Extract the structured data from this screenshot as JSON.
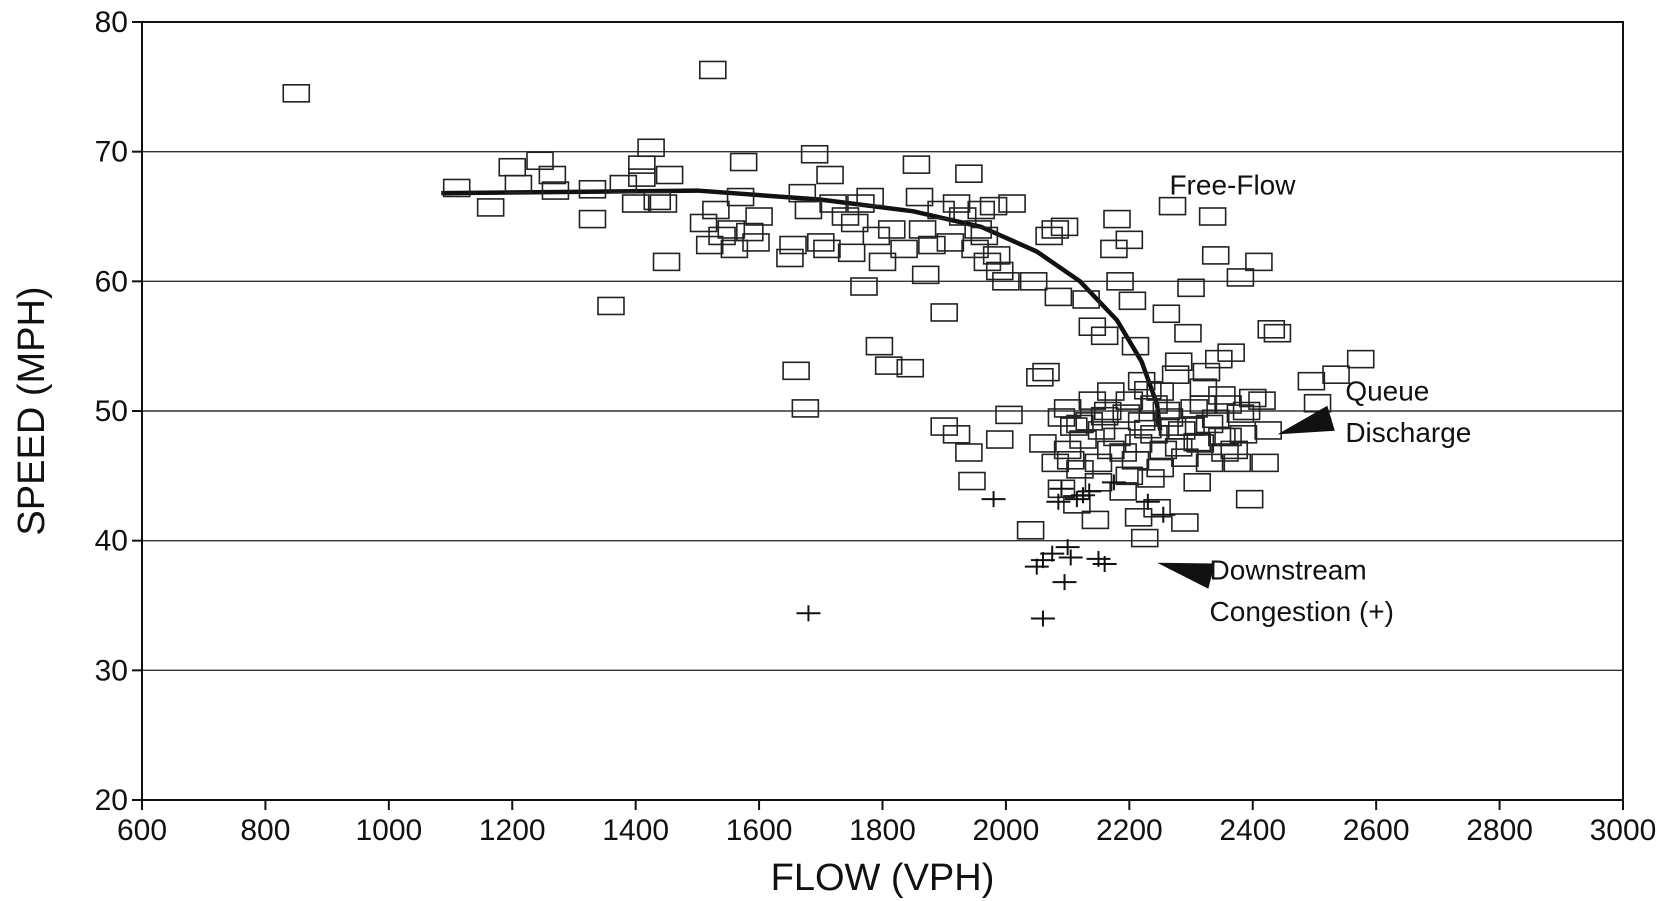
{
  "chart_data": {
    "type": "scatter",
    "xlabel": "FLOW (VPH)",
    "ylabel": "SPEED (MPH)",
    "xlim": [
      600,
      3000
    ],
    "ylim": [
      20,
      80
    ],
    "x_ticks": [
      600,
      800,
      1000,
      1200,
      1400,
      1600,
      1800,
      2000,
      2200,
      2400,
      2600,
      2800,
      3000
    ],
    "y_ticks": [
      20,
      30,
      40,
      50,
      60,
      70,
      80
    ],
    "grid": "horizontal",
    "series": [
      {
        "marker": "square",
        "points": [
          [
            850,
            74.5
          ],
          [
            1525,
            76.3
          ],
          [
            1110,
            67.2
          ],
          [
            1165,
            65.7
          ],
          [
            1200,
            68.8
          ],
          [
            1210,
            67.5
          ],
          [
            1245,
            69.3
          ],
          [
            1265,
            68.2
          ],
          [
            1270,
            67.0
          ],
          [
            1330,
            67.1
          ],
          [
            1330,
            64.8
          ],
          [
            1360,
            58.1
          ],
          [
            1380,
            67.5
          ],
          [
            1400,
            66.0
          ],
          [
            1410,
            68.0
          ],
          [
            1425,
            70.3
          ],
          [
            1435,
            66.2
          ],
          [
            1445,
            66.0
          ],
          [
            1455,
            68.2
          ],
          [
            1450,
            61.5
          ],
          [
            1410,
            69.0
          ],
          [
            1510,
            64.5
          ],
          [
            1520,
            62.8
          ],
          [
            1530,
            65.5
          ],
          [
            1540,
            63.5
          ],
          [
            1555,
            64.0
          ],
          [
            1560,
            62.5
          ],
          [
            1570,
            66.5
          ],
          [
            1575,
            69.2
          ],
          [
            1585,
            63.8
          ],
          [
            1595,
            63.0
          ],
          [
            1600,
            65.0
          ],
          [
            1650,
            61.8
          ],
          [
            1655,
            62.8
          ],
          [
            1660,
            53.1
          ],
          [
            1670,
            66.8
          ],
          [
            1675,
            50.2
          ],
          [
            1680,
            65.5
          ],
          [
            1690,
            69.8
          ],
          [
            1700,
            63.0
          ],
          [
            1710,
            62.5
          ],
          [
            1715,
            68.2
          ],
          [
            1720,
            66.0
          ],
          [
            1740,
            65.0
          ],
          [
            1750,
            62.2
          ],
          [
            1755,
            64.5
          ],
          [
            1765,
            66.0
          ],
          [
            1770,
            59.6
          ],
          [
            1780,
            66.5
          ],
          [
            1790,
            63.5
          ],
          [
            1795,
            55.0
          ],
          [
            1800,
            61.5
          ],
          [
            1810,
            53.5
          ],
          [
            1815,
            64.0
          ],
          [
            1835,
            62.5
          ],
          [
            1845,
            53.3
          ],
          [
            1855,
            69.0
          ],
          [
            1860,
            66.5
          ],
          [
            1865,
            64.0
          ],
          [
            1870,
            60.5
          ],
          [
            1880,
            62.8
          ],
          [
            1895,
            65.5
          ],
          [
            1900,
            57.6
          ],
          [
            1910,
            63.0
          ],
          [
            1920,
            66.0
          ],
          [
            1930,
            65.0
          ],
          [
            1940,
            68.3
          ],
          [
            1950,
            62.5
          ],
          [
            1955,
            64.0
          ],
          [
            1960,
            65.5
          ],
          [
            1965,
            63.5
          ],
          [
            1970,
            61.5
          ],
          [
            1980,
            65.8
          ],
          [
            1985,
            62.0
          ],
          [
            1990,
            60.8
          ],
          [
            2000,
            60.0
          ],
          [
            1900,
            48.8
          ],
          [
            1920,
            48.2
          ],
          [
            1940,
            46.8
          ],
          [
            1945,
            44.6
          ],
          [
            1990,
            47.8
          ],
          [
            2005,
            49.7
          ],
          [
            2010,
            66.0
          ],
          [
            2040,
            40.8
          ],
          [
            2045,
            60.0
          ],
          [
            2055,
            52.6
          ],
          [
            2065,
            53.0
          ],
          [
            2070,
            63.5
          ],
          [
            2080,
            64.0
          ],
          [
            2085,
            58.8
          ],
          [
            2090,
            49.5
          ],
          [
            2095,
            64.2
          ],
          [
            2100,
            47.0
          ],
          [
            2105,
            46.2
          ],
          [
            2110,
            48.8
          ],
          [
            2115,
            42.8
          ],
          [
            2120,
            45.5
          ],
          [
            2125,
            47.8
          ],
          [
            2130,
            58.6
          ],
          [
            2135,
            49.2
          ],
          [
            2140,
            56.5
          ],
          [
            2145,
            41.6
          ],
          [
            2150,
            44.5
          ],
          [
            2155,
            48.5
          ],
          [
            2160,
            55.8
          ],
          [
            2165,
            50.0
          ],
          [
            2170,
            47.0
          ],
          [
            2175,
            62.5
          ],
          [
            2180,
            64.8
          ],
          [
            2185,
            60.0
          ],
          [
            2190,
            46.8
          ],
          [
            2195,
            49.8
          ],
          [
            2200,
            63.2
          ],
          [
            2205,
            58.5
          ],
          [
            2210,
            55.0
          ],
          [
            2215,
            47.5
          ],
          [
            2220,
            52.3
          ],
          [
            2225,
            40.2
          ],
          [
            2230,
            48.6
          ],
          [
            2235,
            44.8
          ],
          [
            2240,
            50.5
          ],
          [
            2245,
            42.5
          ],
          [
            2250,
            51.5
          ],
          [
            2255,
            47.0
          ],
          [
            2260,
            57.5
          ],
          [
            2265,
            49.5
          ],
          [
            2270,
            65.8
          ],
          [
            2275,
            52.8
          ],
          [
            2280,
            53.8
          ],
          [
            2285,
            48.5
          ],
          [
            2290,
            41.4
          ],
          [
            2295,
            56.0
          ],
          [
            2300,
            59.5
          ],
          [
            2305,
            50.2
          ],
          [
            2310,
            44.5
          ],
          [
            2315,
            47.5
          ],
          [
            2320,
            51.8
          ],
          [
            2325,
            53.0
          ],
          [
            2330,
            49.0
          ],
          [
            2335,
            65.0
          ],
          [
            2340,
            62.0
          ],
          [
            2345,
            54.0
          ],
          [
            2350,
            48.0
          ],
          [
            2355,
            46.8
          ],
          [
            2360,
            50.5
          ],
          [
            2365,
            54.5
          ],
          [
            2370,
            47.0
          ],
          [
            2375,
            46.0
          ],
          [
            2380,
            60.3
          ],
          [
            2385,
            48.2
          ],
          [
            2390,
            50.0
          ],
          [
            2395,
            43.2
          ],
          [
            2400,
            51.0
          ],
          [
            2410,
            61.5
          ],
          [
            2415,
            50.8
          ],
          [
            2420,
            46.0
          ],
          [
            2425,
            48.5
          ],
          [
            2430,
            56.3
          ],
          [
            2440,
            56.0
          ],
          [
            2495,
            52.3
          ],
          [
            2505,
            50.6
          ],
          [
            2535,
            52.8
          ],
          [
            2575,
            54.0
          ],
          [
            2100,
            50.2
          ],
          [
            2120,
            49.0
          ],
          [
            2140,
            50.8
          ],
          [
            2160,
            49.6
          ],
          [
            2180,
            48.0
          ],
          [
            2200,
            50.8
          ],
          [
            2220,
            49.2
          ],
          [
            2240,
            48.2
          ],
          [
            2260,
            50.0
          ],
          [
            2280,
            47.2
          ],
          [
            2300,
            48.8
          ],
          [
            2320,
            50.5
          ],
          [
            2340,
            49.4
          ],
          [
            2360,
            48.0
          ],
          [
            2380,
            49.8
          ],
          [
            2150,
            46.0
          ],
          [
            2170,
            51.5
          ],
          [
            2190,
            43.8
          ],
          [
            2210,
            46.2
          ],
          [
            2230,
            51.6
          ],
          [
            2250,
            45.6
          ],
          [
            2270,
            48.8
          ],
          [
            2290,
            46.4
          ],
          [
            2310,
            47.6
          ],
          [
            2330,
            46.0
          ],
          [
            2350,
            51.2
          ],
          [
            2060,
            47.5
          ],
          [
            2080,
            46.0
          ],
          [
            2090,
            44.0
          ],
          [
            2200,
            45.0
          ],
          [
            2215,
            41.8
          ]
        ]
      },
      {
        "marker": "plus",
        "points": [
          [
            1680,
            34.4
          ],
          [
            1980,
            43.2
          ],
          [
            2050,
            38.0
          ],
          [
            2060,
            38.5
          ],
          [
            2060,
            34.0
          ],
          [
            2075,
            39.0
          ],
          [
            2085,
            43.0
          ],
          [
            2090,
            44.0
          ],
          [
            2095,
            36.8
          ],
          [
            2100,
            39.5
          ],
          [
            2105,
            38.7
          ],
          [
            2115,
            43.2
          ],
          [
            2125,
            43.5
          ],
          [
            2135,
            43.8
          ],
          [
            2150,
            38.6
          ],
          [
            2160,
            38.2
          ],
          [
            2175,
            44.5
          ],
          [
            2230,
            43.0
          ],
          [
            2255,
            42.0
          ]
        ]
      }
    ],
    "curve": {
      "style": "solid",
      "points": [
        [
          1085,
          66.8
        ],
        [
          1300,
          66.9
        ],
        [
          1500,
          67.0
        ],
        [
          1700,
          66.3
        ],
        [
          1850,
          65.4
        ],
        [
          1960,
          64.2
        ],
        [
          2050,
          62.3
        ],
        [
          2120,
          60.0
        ],
        [
          2180,
          57.0
        ],
        [
          2220,
          53.8
        ],
        [
          2245,
          50.5
        ],
        [
          2250,
          48.5
        ]
      ]
    },
    "annotations": [
      {
        "text": "Free-Flow",
        "x": 2265,
        "y": 66.7
      },
      {
        "text": "Queue",
        "x": 2150,
        "y": 50.8,
        "text_x": 2550
      },
      {
        "text": "Discharge",
        "x": 2150,
        "y": 47.6,
        "text_x": 2550
      },
      {
        "text": "Downstream",
        "x": 2150,
        "y": 37.0,
        "text_x": 2330
      },
      {
        "text": "Congestion (+)",
        "x": 2150,
        "y": 33.8,
        "text_x": 2330
      }
    ],
    "arrows": [
      {
        "from": [
          2510,
          49.2
        ],
        "to": [
          2440,
          48.2
        ]
      },
      {
        "from": [
          2330,
          37.3
        ],
        "to": [
          2245,
          38.3
        ]
      }
    ]
  }
}
